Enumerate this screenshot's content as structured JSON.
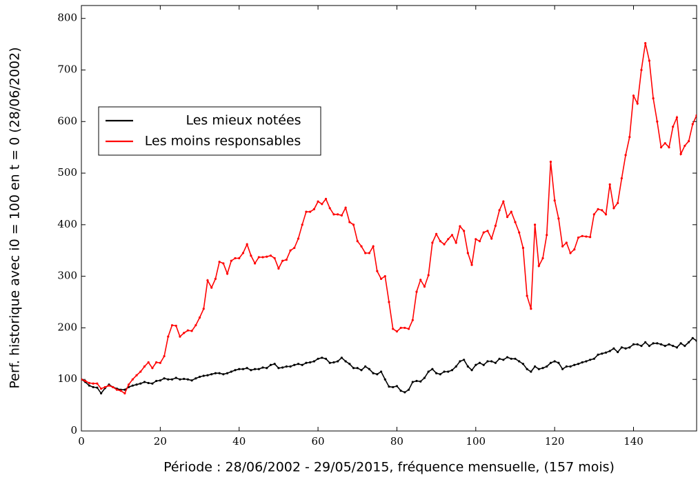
{
  "chart_data": {
    "type": "line",
    "xlabel": "Période : 28/06/2002 - 29/05/2015, fréquence mensuelle, (157 mois)",
    "ylabel": "Perf. historique avec i0 = 100 en t = 0 (28/06/2002)",
    "x": [
      0,
      1,
      2,
      3,
      4,
      5,
      6,
      7,
      8,
      9,
      10,
      11,
      12,
      13,
      14,
      15,
      16,
      17,
      18,
      19,
      20,
      21,
      22,
      23,
      24,
      25,
      26,
      27,
      28,
      29,
      30,
      31,
      32,
      33,
      34,
      35,
      36,
      37,
      38,
      39,
      40,
      41,
      42,
      43,
      44,
      45,
      46,
      47,
      48,
      49,
      50,
      51,
      52,
      53,
      54,
      55,
      56,
      57,
      58,
      59,
      60,
      61,
      62,
      63,
      64,
      65,
      66,
      67,
      68,
      69,
      70,
      71,
      72,
      73,
      74,
      75,
      76,
      77,
      78,
      79,
      80,
      81,
      82,
      83,
      84,
      85,
      86,
      87,
      88,
      89,
      90,
      91,
      92,
      93,
      94,
      95,
      96,
      97,
      98,
      99,
      100,
      101,
      102,
      103,
      104,
      105,
      106,
      107,
      108,
      109,
      110,
      111,
      112,
      113,
      114,
      115,
      116,
      117,
      118,
      119,
      120,
      121,
      122,
      123,
      124,
      125,
      126,
      127,
      128,
      129,
      130,
      131,
      132,
      133,
      134,
      135,
      136,
      137,
      138,
      139,
      140,
      141,
      142,
      143,
      144,
      145,
      146,
      147,
      148,
      149,
      150,
      151,
      152,
      153,
      154,
      155,
      156
    ],
    "series": [
      {
        "name": "Les mieux notées",
        "color": "#000000",
        "values": [
          100,
          95,
          88,
          85,
          84,
          73,
          83,
          90,
          85,
          82,
          80,
          80,
          85,
          88,
          90,
          92,
          95,
          93,
          92,
          97,
          98,
          102,
          100,
          100,
          103,
          100,
          101,
          100,
          98,
          102,
          105,
          107,
          108,
          110,
          112,
          112,
          110,
          112,
          115,
          118,
          120,
          120,
          122,
          118,
          120,
          120,
          123,
          122,
          128,
          130,
          122,
          123,
          125,
          125,
          128,
          130,
          128,
          132,
          133,
          135,
          140,
          142,
          140,
          132,
          133,
          135,
          142,
          135,
          130,
          122,
          122,
          118,
          125,
          120,
          112,
          110,
          115,
          100,
          86,
          85,
          87,
          78,
          75,
          80,
          95,
          97,
          96,
          103,
          115,
          120,
          112,
          110,
          115,
          115,
          118,
          125,
          135,
          138,
          125,
          118,
          128,
          132,
          128,
          135,
          135,
          132,
          140,
          138,
          143,
          140,
          140,
          135,
          130,
          120,
          115,
          125,
          120,
          122,
          125,
          132,
          135,
          132,
          120,
          125,
          125,
          128,
          130,
          133,
          135,
          138,
          140,
          148,
          150,
          152,
          155,
          160,
          153,
          162,
          160,
          162,
          168,
          168,
          165,
          172,
          165,
          170,
          170,
          168,
          165,
          168,
          165,
          162,
          170,
          165,
          172,
          180,
          175
        ]
      },
      {
        "name": "Les moins responsables",
        "color": "#ff0000",
        "values": [
          100,
          97,
          93,
          92,
          92,
          82,
          85,
          88,
          85,
          80,
          78,
          73,
          90,
          100,
          108,
          115,
          125,
          133,
          122,
          133,
          132,
          145,
          183,
          205,
          204,
          183,
          190,
          195,
          194,
          205,
          220,
          237,
          292,
          278,
          295,
          328,
          325,
          305,
          330,
          335,
          335,
          345,
          362,
          340,
          325,
          337,
          337,
          338,
          340,
          335,
          315,
          330,
          332,
          350,
          355,
          373,
          400,
          425,
          425,
          430,
          445,
          440,
          450,
          432,
          420,
          420,
          418,
          433,
          405,
          400,
          368,
          358,
          345,
          345,
          358,
          310,
          295,
          300,
          250,
          198,
          193,
          200,
          200,
          198,
          215,
          270,
          293,
          280,
          302,
          365,
          382,
          368,
          362,
          372,
          380,
          365,
          397,
          388,
          345,
          322,
          372,
          368,
          385,
          388,
          373,
          398,
          428,
          445,
          415,
          425,
          405,
          385,
          355,
          262,
          237,
          400,
          320,
          335,
          380,
          522,
          447,
          412,
          358,
          365,
          345,
          352,
          375,
          378,
          377,
          376,
          420,
          430,
          428,
          420,
          478,
          432,
          442,
          490,
          535,
          570,
          650,
          635,
          700,
          752,
          718,
          645,
          600,
          550,
          558,
          550,
          590,
          608,
          537,
          553,
          562,
          595,
          612
        ]
      }
    ],
    "xlim": [
      0,
      156
    ],
    "xticks": [
      0,
      20,
      40,
      60,
      80,
      100,
      120,
      140
    ],
    "ylim": [
      0,
      825
    ],
    "yticks": [
      0,
      100,
      200,
      300,
      400,
      500,
      600,
      700,
      800
    ],
    "markers": true,
    "legend_position": "left"
  }
}
